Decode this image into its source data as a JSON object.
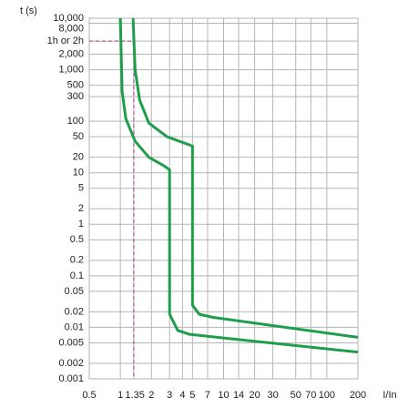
{
  "chart_data": {
    "type": "line",
    "y_label": "t (s)",
    "x_label": "I/In",
    "log_x": true,
    "log_y": true,
    "grid": true,
    "xlim": [
      0.5,
      200
    ],
    "ylim": [
      0.001,
      10000
    ],
    "xticks": [
      0.5,
      1,
      1.35,
      2,
      3,
      4,
      5,
      7,
      10,
      14,
      20,
      30,
      50,
      70,
      100,
      200
    ],
    "yticks": [
      {
        "value": 10000,
        "label": "10,000"
      },
      {
        "value": 8000,
        "label": "8,000"
      },
      {
        "value": 3600,
        "label": "1h or 2h"
      },
      {
        "value": 2000,
        "label": "2,000"
      },
      {
        "value": 1000,
        "label": "1,000"
      },
      500,
      300,
      100,
      50,
      20,
      10,
      5,
      2,
      1,
      0.5,
      0.2,
      0.1,
      0.05,
      0.02,
      0.01,
      0.005,
      0.002,
      0.001
    ],
    "reference_color": "#b0309a",
    "series": [
      {
        "color": "#1e9e4a",
        "x": [
          1.33,
          1.36,
          1.39,
          1.54,
          1.89,
          2.84,
          5,
          5,
          5.8,
          7.9,
          200
        ],
        "values": [
          10000,
          2950,
          1000,
          257,
          92,
          50,
          33,
          0.027,
          0.018,
          0.0156,
          0.0064
        ]
      },
      {
        "color": "#1e9e4a",
        "x": [
          1,
          1.04,
          1.13,
          1.39,
          1.89,
          2.67,
          3,
          3,
          3.6,
          4.7,
          200
        ],
        "values": [
          10000,
          384,
          113,
          41,
          20,
          13.5,
          11.4,
          0.018,
          0.0087,
          0.0073,
          0.0033
        ]
      }
    ]
  }
}
